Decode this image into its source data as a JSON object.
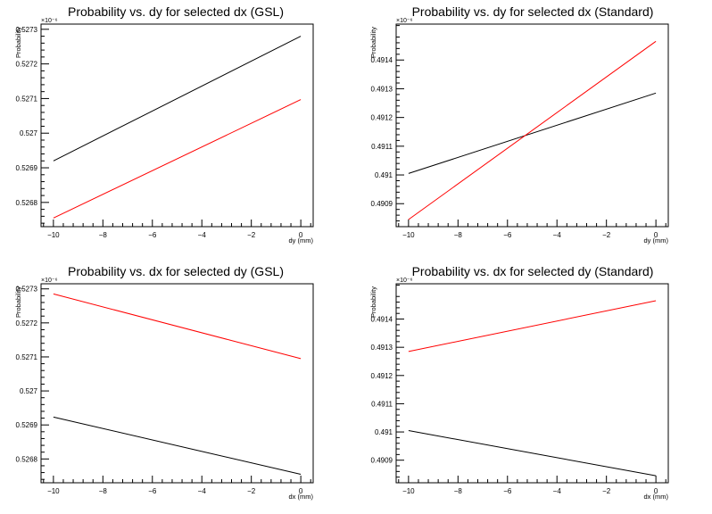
{
  "chart_data": [
    {
      "type": "line",
      "title": "Probability vs. dy for selected dx (GSL)",
      "xlabel": "dy (mm)",
      "ylabel": "Probability",
      "exponent_label": "×10⁻⁶",
      "xlim": [
        -10.5,
        0.5
      ],
      "ylim": [
        0.52673,
        0.527315
      ],
      "xticks": [
        -10,
        -8,
        -6,
        -4,
        -2,
        0
      ],
      "yticks": [
        0.5268,
        0.5269,
        0.527,
        0.5271,
        0.5272,
        0.5273
      ],
      "ytick_labels": [
        "0.5268",
        "0.5269",
        "0.527",
        "0.5271",
        "0.5272",
        "0.5273"
      ],
      "series": [
        {
          "color": "#000000",
          "x": [
            -10,
            0
          ],
          "y": [
            0.52692,
            0.52728
          ]
        },
        {
          "color": "#ff0000",
          "x": [
            -10,
            0
          ],
          "y": [
            0.526755,
            0.527097
          ]
        }
      ]
    },
    {
      "type": "line",
      "title": "Probability vs. dy for selected dx (Standard)",
      "xlabel": "dy (mm)",
      "ylabel": "Probability",
      "exponent_label": "×10⁻⁶",
      "xlim": [
        -10.5,
        0.5
      ],
      "ylim": [
        0.49082,
        0.491525
      ],
      "xticks": [
        -10,
        -8,
        -6,
        -4,
        -2,
        0
      ],
      "yticks": [
        0.4909,
        0.491,
        0.4911,
        0.4912,
        0.4913,
        0.4914
      ],
      "ytick_labels": [
        "0.4909",
        "0.491",
        "0.4911",
        "0.4912",
        "0.4913",
        "0.4914"
      ],
      "series": [
        {
          "color": "#000000",
          "x": [
            -10,
            0
          ],
          "y": [
            0.491005,
            0.491285
          ]
        },
        {
          "color": "#ff0000",
          "x": [
            -10,
            0
          ],
          "y": [
            0.490845,
            0.491465
          ]
        }
      ]
    },
    {
      "type": "line",
      "title": "Probability vs. dx for selected dy (GSL)",
      "xlabel": "dx (mm)",
      "ylabel": "Probability",
      "exponent_label": "×10⁻⁶",
      "xlim": [
        -10.5,
        0.5
      ],
      "ylim": [
        0.52673,
        0.527315
      ],
      "xticks": [
        -10,
        -8,
        -6,
        -4,
        -2,
        0
      ],
      "yticks": [
        0.5268,
        0.5269,
        0.527,
        0.5271,
        0.5272,
        0.5273
      ],
      "ytick_labels": [
        "0.5268",
        "0.5269",
        "0.527",
        "0.5271",
        "0.5272",
        "0.5273"
      ],
      "series": [
        {
          "color": "#ff0000",
          "x": [
            -10,
            0
          ],
          "y": [
            0.527285,
            0.527095
          ]
        },
        {
          "color": "#000000",
          "x": [
            -10,
            0
          ],
          "y": [
            0.526923,
            0.526755
          ]
        }
      ]
    },
    {
      "type": "line",
      "title": "Probability vs. dx for selected dy (Standard)",
      "xlabel": "dx (mm)",
      "ylabel": "Probability",
      "exponent_label": "×10⁻⁶",
      "xlim": [
        -10.5,
        0.5
      ],
      "ylim": [
        0.49082,
        0.491525
      ],
      "xticks": [
        -10,
        -8,
        -6,
        -4,
        -2,
        0
      ],
      "yticks": [
        0.4909,
        0.491,
        0.4911,
        0.4912,
        0.4913,
        0.4914
      ],
      "ytick_labels": [
        "0.4909",
        "0.491",
        "0.4911",
        "0.4912",
        "0.4913",
        "0.4914"
      ],
      "series": [
        {
          "color": "#ff0000",
          "x": [
            -10,
            0
          ],
          "y": [
            0.491285,
            0.491465
          ]
        },
        {
          "color": "#000000",
          "x": [
            -10,
            0
          ],
          "y": [
            0.491005,
            0.490845
          ]
        }
      ]
    }
  ]
}
